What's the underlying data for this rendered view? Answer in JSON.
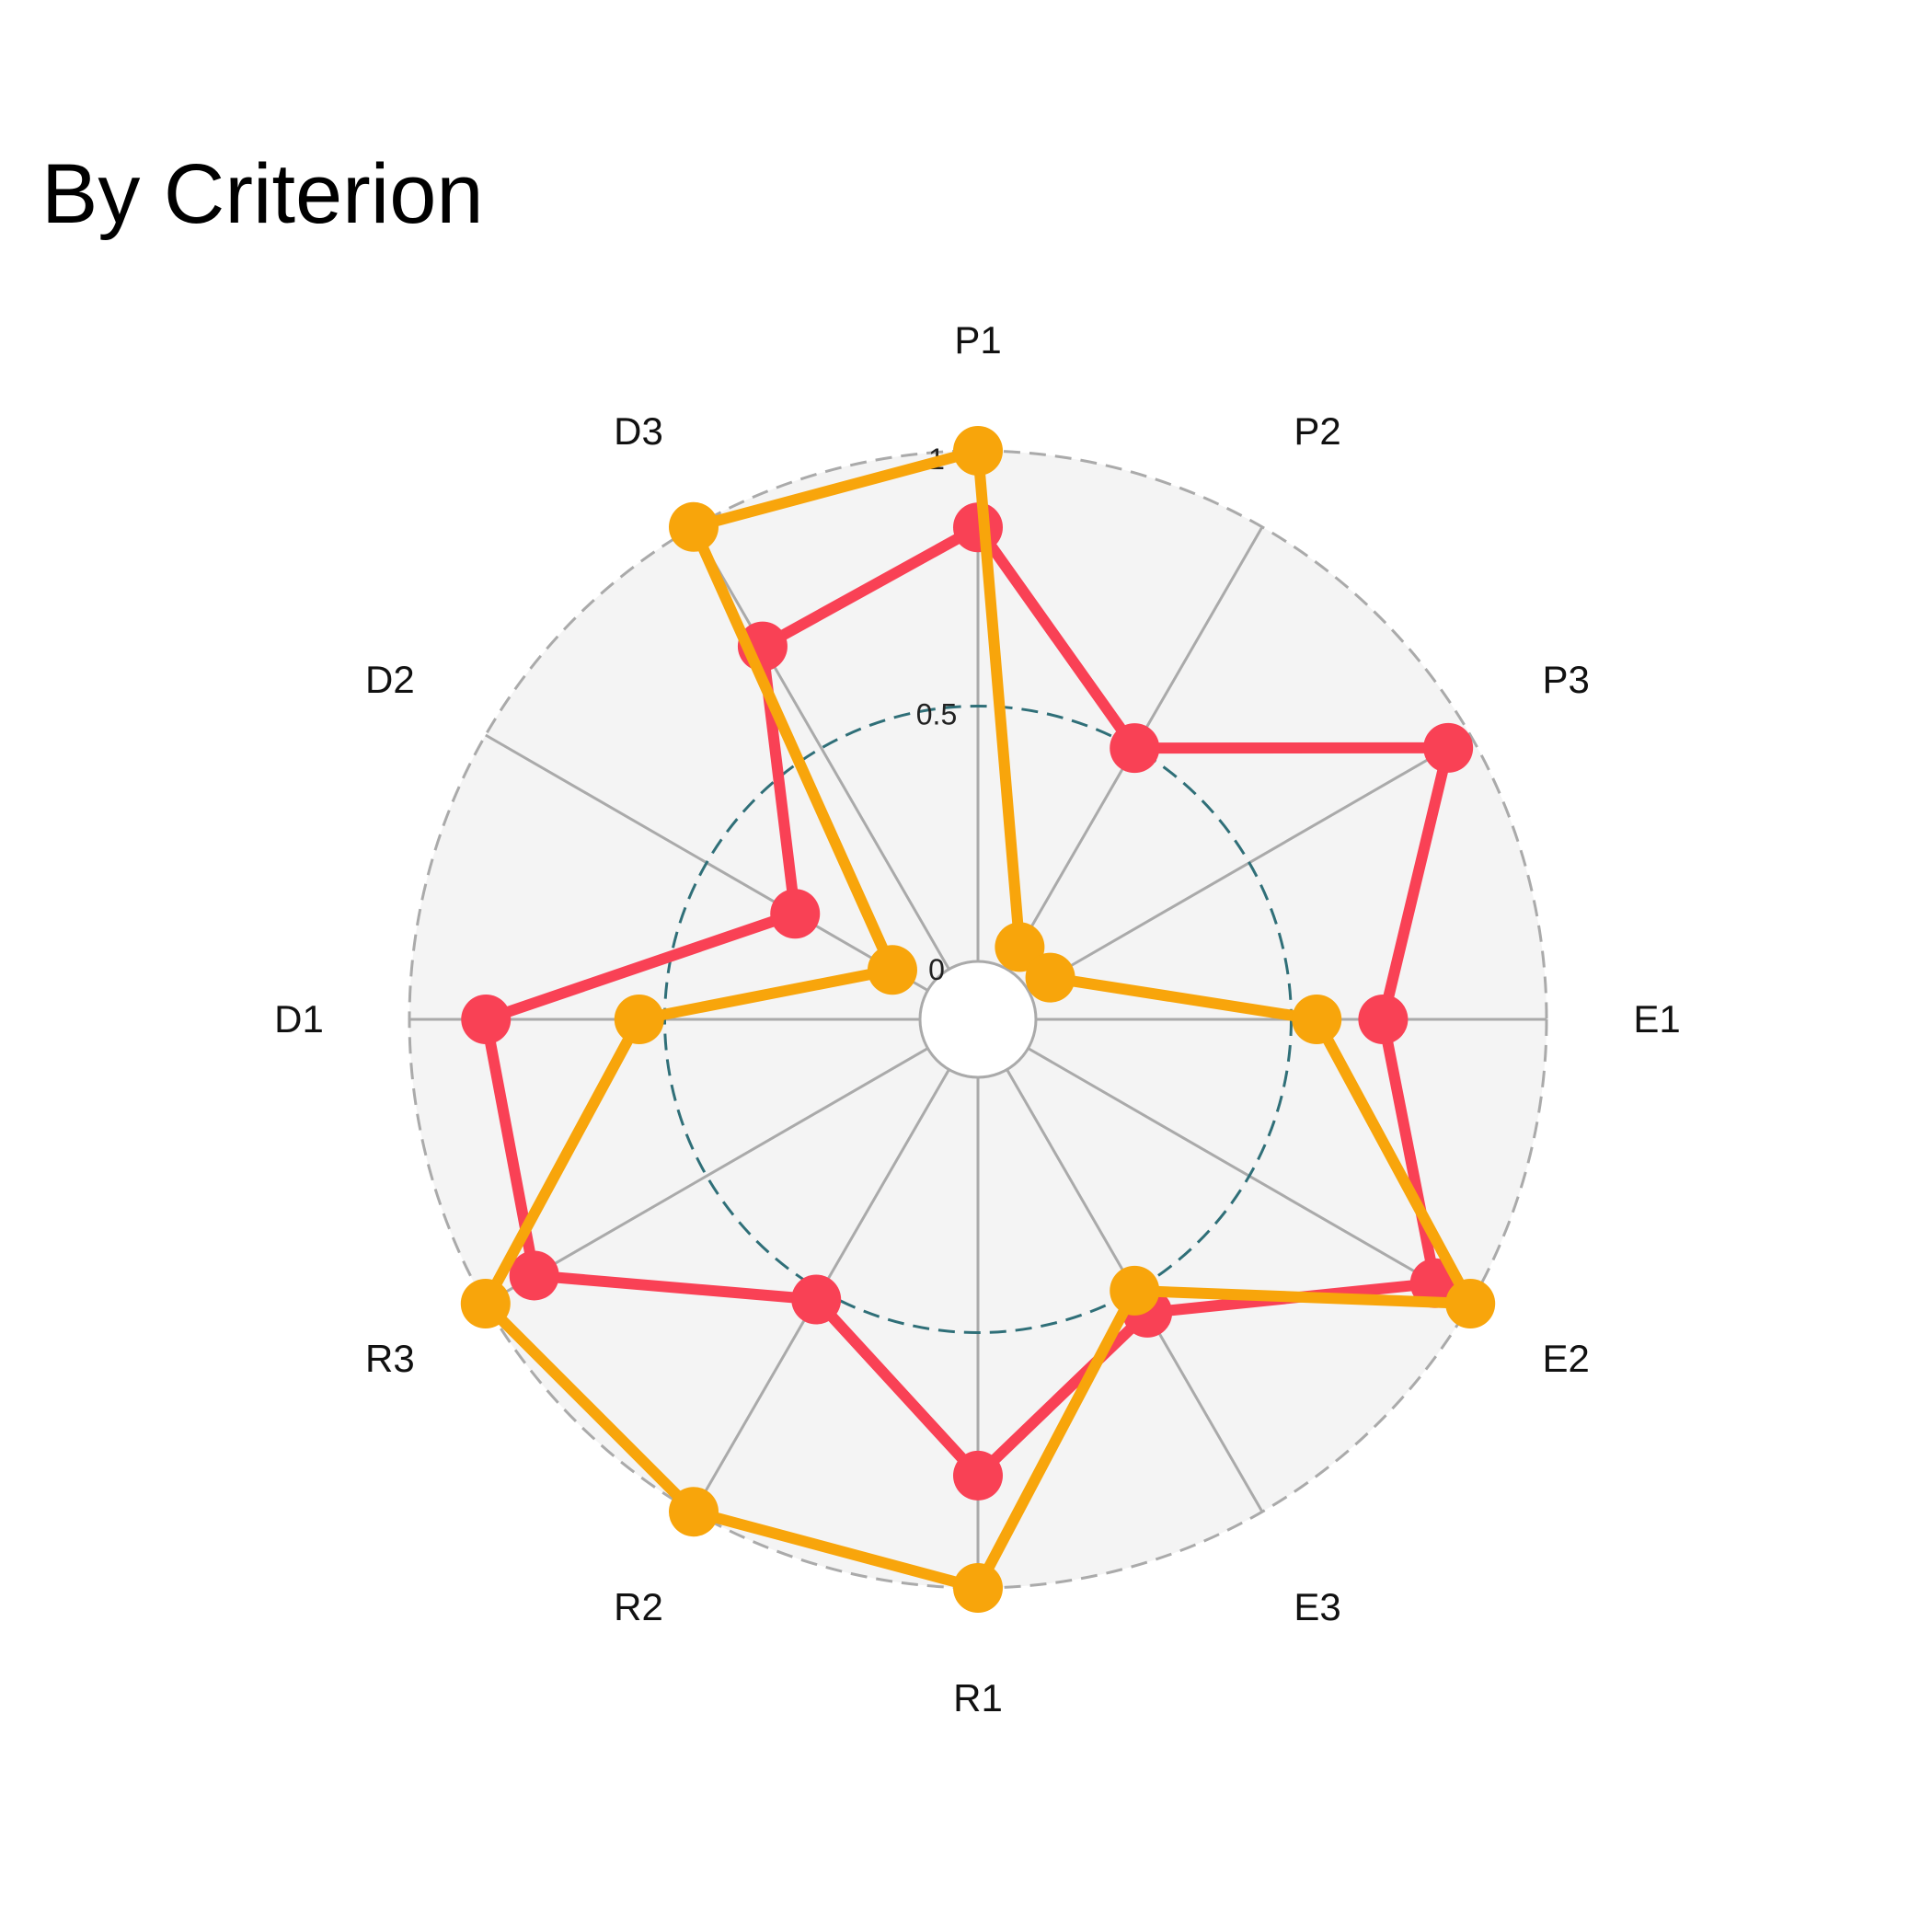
{
  "chart_data": {
    "type": "radar",
    "title": "By Criterion",
    "categories": [
      "P1",
      "P2",
      "P3",
      "E1",
      "E2",
      "E3",
      "R1",
      "R2",
      "R3",
      "D1",
      "D2",
      "D3"
    ],
    "radial_ticks": [
      {
        "value": 0,
        "label": "0"
      },
      {
        "value": 0.5,
        "label": "0.5"
      },
      {
        "value": 1,
        "label": "1"
      }
    ],
    "rlim": [
      0,
      1
    ],
    "grid": true,
    "legend": "none",
    "colors": {
      "background": "#f4f4f4",
      "grid": "#aaaaaa",
      "mid_ring": "#2f6f78",
      "outer_ring": "#aaaaaa"
    },
    "series": [
      {
        "color": "#f94155",
        "values": [
          0.85,
          0.5,
          0.95,
          0.68,
          0.92,
          0.55,
          0.78,
          0.52,
          0.89,
          0.85,
          0.3,
          0.73
        ]
      },
      {
        "color": "#f8a50b",
        "values": [
          1.0,
          0.05,
          0.05,
          0.55,
          1.0,
          0.5,
          1.0,
          1.0,
          1.0,
          0.55,
          0.08,
          1.0
        ]
      }
    ]
  }
}
